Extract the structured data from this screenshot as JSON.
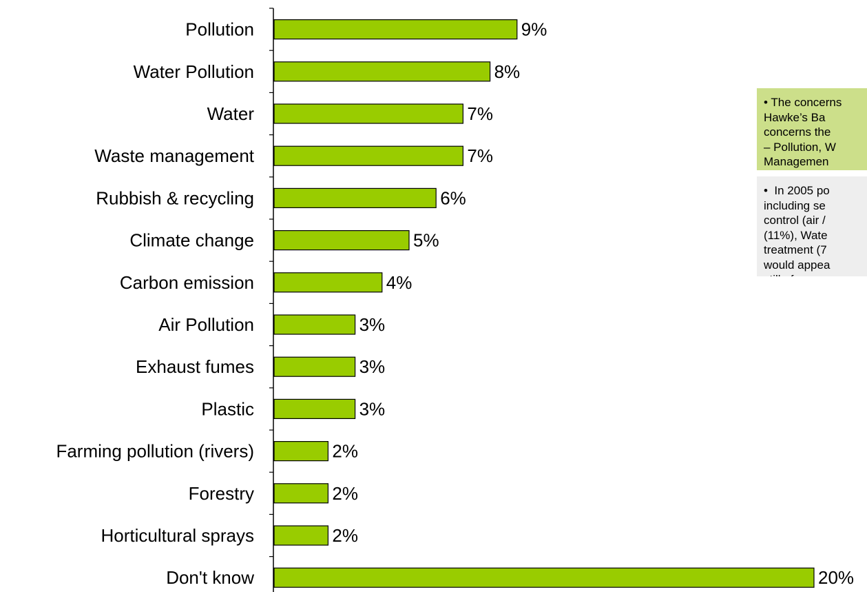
{
  "chart_data": {
    "type": "bar",
    "orientation": "horizontal",
    "categories": [
      "Pollution",
      "Water Pollution",
      "Water",
      "Waste management",
      "Rubbish & recycling",
      "Climate change",
      "Carbon emission",
      "Air Pollution",
      "Exhaust fumes",
      "Plastic",
      "Farming pollution (rivers)",
      "Forestry",
      "Horticultural sprays",
      "Don't know"
    ],
    "values": [
      9,
      8,
      7,
      7,
      6,
      5,
      4,
      3,
      3,
      3,
      2,
      2,
      2,
      20
    ],
    "value_labels": [
      "9%",
      "8%",
      "7%",
      "7%",
      "6%",
      "5%",
      "4%",
      "3%",
      "3%",
      "3%",
      "2%",
      "2%",
      "2%",
      "20%"
    ],
    "unit": "%",
    "xlim": [
      0,
      20
    ],
    "grid": false,
    "legend": "none"
  },
  "colors": {
    "bar_fill": "#99cc00",
    "bar_stroke": "#000000",
    "note_green_bg": "#ccdf8a",
    "note_grey_bg": "#eeeeee"
  },
  "notes": [
    {
      "text": "• The concerns\nHawke’s Ba\nconcerns the\n– Pollution, W\nManagemen"
    },
    {
      "text": "•  In 2005 po\nincluding se\ncontrol (air /\n(11%), Wate\ntreatment (7\nwould appea\nstill of conce"
    }
  ]
}
